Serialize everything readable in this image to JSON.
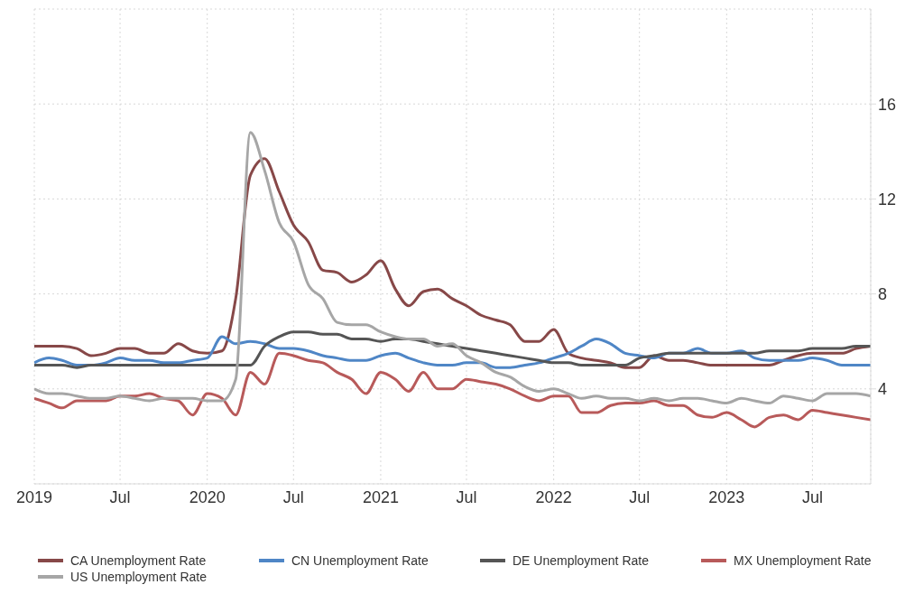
{
  "chart_data": {
    "type": "line",
    "x": [
      "2019-01",
      "2019-02",
      "2019-03",
      "2019-04",
      "2019-05",
      "2019-06",
      "2019-07",
      "2019-08",
      "2019-09",
      "2019-10",
      "2019-11",
      "2019-12",
      "2020-01",
      "2020-02",
      "2020-03",
      "2020-04",
      "2020-05",
      "2020-06",
      "2020-07",
      "2020-08",
      "2020-09",
      "2020-10",
      "2020-11",
      "2020-12",
      "2021-01",
      "2021-02",
      "2021-03",
      "2021-04",
      "2021-05",
      "2021-06",
      "2021-07",
      "2021-08",
      "2021-09",
      "2021-10",
      "2021-11",
      "2021-12",
      "2022-01",
      "2022-02",
      "2022-03",
      "2022-04",
      "2022-05",
      "2022-06",
      "2022-07",
      "2022-08",
      "2022-09",
      "2022-10",
      "2022-11",
      "2022-12",
      "2023-01",
      "2023-02",
      "2023-03",
      "2023-04",
      "2023-05",
      "2023-06",
      "2023-07",
      "2023-08",
      "2023-09",
      "2023-10",
      "2023-11"
    ],
    "series": [
      {
        "name": "CA Unemployment Rate",
        "color": "#874848",
        "values": [
          5.8,
          5.8,
          5.8,
          5.7,
          5.4,
          5.5,
          5.7,
          5.7,
          5.5,
          5.5,
          5.9,
          5.6,
          5.5,
          5.6,
          7.8,
          13.0,
          13.7,
          12.3,
          10.9,
          10.2,
          9.0,
          8.9,
          8.5,
          8.8,
          9.4,
          8.2,
          7.5,
          8.1,
          8.2,
          7.8,
          7.5,
          7.1,
          6.9,
          6.7,
          6.0,
          6.0,
          6.5,
          5.5,
          5.3,
          5.2,
          5.1,
          4.9,
          4.9,
          5.4,
          5.2,
          5.2,
          5.1,
          5.0,
          5.0,
          5.0,
          5.0,
          5.0,
          5.2,
          5.4,
          5.5,
          5.5,
          5.5,
          5.7,
          5.8
        ]
      },
      {
        "name": "CN Unemployment Rate",
        "color": "#4f86c6",
        "values": [
          5.1,
          5.3,
          5.2,
          5.0,
          5.0,
          5.1,
          5.3,
          5.2,
          5.2,
          5.1,
          5.1,
          5.2,
          5.3,
          6.2,
          5.9,
          6.0,
          5.9,
          5.7,
          5.7,
          5.6,
          5.4,
          5.3,
          5.2,
          5.2,
          5.4,
          5.5,
          5.3,
          5.1,
          5.0,
          5.0,
          5.1,
          5.1,
          4.9,
          4.9,
          5.0,
          5.1,
          5.3,
          5.5,
          5.8,
          6.1,
          5.9,
          5.5,
          5.4,
          5.3,
          5.5,
          5.5,
          5.7,
          5.5,
          5.5,
          5.6,
          5.3,
          5.2,
          5.2,
          5.2,
          5.3,
          5.2,
          5.0,
          5.0,
          5.0
        ]
      },
      {
        "name": "DE Unemployment Rate",
        "color": "#555555",
        "values": [
          5.0,
          5.0,
          5.0,
          4.9,
          5.0,
          5.0,
          5.0,
          5.0,
          5.0,
          5.0,
          5.0,
          5.0,
          5.0,
          5.0,
          5.0,
          5.0,
          5.8,
          6.2,
          6.4,
          6.4,
          6.3,
          6.3,
          6.1,
          6.1,
          6.0,
          6.1,
          6.1,
          6.0,
          5.9,
          5.8,
          5.7,
          5.6,
          5.5,
          5.4,
          5.3,
          5.2,
          5.1,
          5.1,
          5.0,
          5.0,
          5.0,
          5.0,
          5.3,
          5.4,
          5.5,
          5.5,
          5.5,
          5.5,
          5.5,
          5.5,
          5.5,
          5.6,
          5.6,
          5.6,
          5.7,
          5.7,
          5.7,
          5.8,
          5.8
        ]
      },
      {
        "name": "MX Unemployment Rate",
        "color": "#b85a5a",
        "values": [
          3.6,
          3.4,
          3.2,
          3.5,
          3.5,
          3.5,
          3.7,
          3.7,
          3.8,
          3.6,
          3.5,
          2.9,
          3.8,
          3.6,
          2.9,
          4.7,
          4.2,
          5.5,
          5.4,
          5.2,
          5.1,
          4.7,
          4.4,
          3.8,
          4.7,
          4.4,
          3.9,
          4.7,
          4.0,
          4.0,
          4.4,
          4.3,
          4.2,
          4.0,
          3.7,
          3.5,
          3.7,
          3.7,
          3.0,
          3.0,
          3.3,
          3.4,
          3.4,
          3.5,
          3.3,
          3.3,
          2.9,
          2.8,
          3.0,
          2.7,
          2.4,
          2.8,
          2.9,
          2.7,
          3.1,
          3.0,
          2.9,
          2.8,
          2.7
        ]
      },
      {
        "name": "US Unemployment Rate",
        "color": "#a6a6a6",
        "values": [
          4.0,
          3.8,
          3.8,
          3.7,
          3.6,
          3.6,
          3.7,
          3.6,
          3.5,
          3.6,
          3.6,
          3.6,
          3.5,
          3.5,
          4.4,
          14.8,
          13.2,
          11.0,
          10.2,
          8.4,
          7.8,
          6.8,
          6.7,
          6.7,
          6.4,
          6.2,
          6.1,
          6.1,
          5.8,
          5.9,
          5.4,
          5.1,
          4.7,
          4.5,
          4.1,
          3.9,
          4.0,
          3.8,
          3.6,
          3.7,
          3.6,
          3.6,
          3.5,
          3.6,
          3.5,
          3.6,
          3.6,
          3.5,
          3.4,
          3.6,
          3.5,
          3.4,
          3.7,
          3.6,
          3.5,
          3.8,
          3.8,
          3.8,
          3.7
        ]
      }
    ],
    "xlim": [
      "2019-01",
      "2023-11"
    ],
    "xticks": [
      {
        "value": "2019-01",
        "label": "2019"
      },
      {
        "value": "2019-07",
        "label": "Jul"
      },
      {
        "value": "2020-01",
        "label": "2020"
      },
      {
        "value": "2020-07",
        "label": "Jul"
      },
      {
        "value": "2021-01",
        "label": "2021"
      },
      {
        "value": "2021-07",
        "label": "Jul"
      },
      {
        "value": "2022-01",
        "label": "2022"
      },
      {
        "value": "2022-07",
        "label": "Jul"
      },
      {
        "value": "2023-01",
        "label": "2023"
      },
      {
        "value": "2023-07",
        "label": "Jul"
      }
    ],
    "ylim": [
      0,
      20
    ],
    "yticks": [
      4,
      8,
      12,
      16
    ],
    "grid": true,
    "legend": "bottom"
  }
}
